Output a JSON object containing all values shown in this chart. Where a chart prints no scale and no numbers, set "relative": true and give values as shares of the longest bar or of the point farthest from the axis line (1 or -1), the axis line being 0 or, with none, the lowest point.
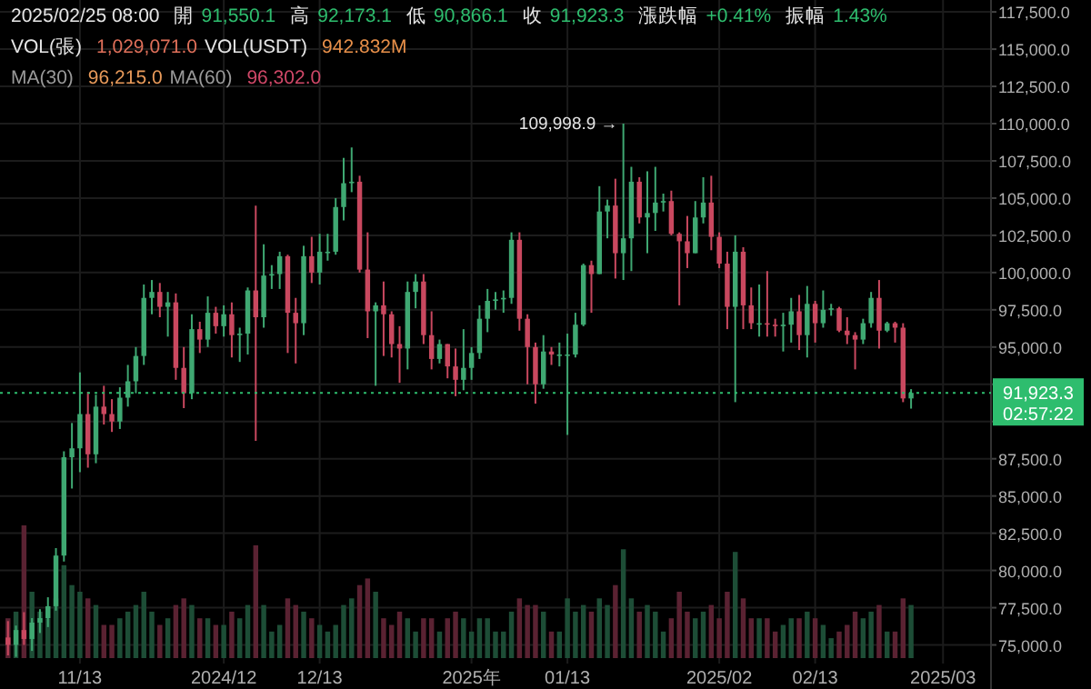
{
  "chart_data": [
    {
      "type": "candlestick",
      "grid": true,
      "xlim": [
        "2024-11-03",
        "2025-03-07"
      ],
      "ylim": [
        73750,
        118300
      ],
      "xticks": [
        {
          "value": "2024-11-13",
          "label": "11/13"
        },
        {
          "value": "2024-12-01",
          "label": "2024/12"
        },
        {
          "value": "2024-12-13",
          "label": "12/13"
        },
        {
          "value": "2025-01-01",
          "label": "2025年"
        },
        {
          "value": "2025-01-13",
          "label": "01/13"
        },
        {
          "value": "2025-02-01",
          "label": "2025/02"
        },
        {
          "value": "2025-02-13",
          "label": "02/13"
        },
        {
          "value": "2025-03-01",
          "label": "2025/03"
        }
      ],
      "yticks": [
        {
          "value": 75000,
          "label": "75,000.0"
        },
        {
          "value": 77500,
          "label": "77,500.0"
        },
        {
          "value": 80000,
          "label": "80,000.0"
        },
        {
          "value": 82500,
          "label": "82,500.0"
        },
        {
          "value": 85000,
          "label": "85,000.0"
        },
        {
          "value": 87500,
          "label": "87,500.0"
        },
        {
          "value": 90000,
          "label": null
        },
        {
          "value": 92500,
          "label": null
        },
        {
          "value": 95000,
          "label": "95,000.0"
        },
        {
          "value": 97500,
          "label": "97,500.0"
        },
        {
          "value": 100000,
          "label": "100,000.0"
        },
        {
          "value": 102500,
          "label": "102,500.0"
        },
        {
          "value": 105000,
          "label": "105,000.0"
        },
        {
          "value": 107500,
          "label": "107,500.0"
        },
        {
          "value": 110000,
          "label": "110,000.0"
        },
        {
          "value": 112500,
          "label": "112,500.0"
        },
        {
          "value": 115000,
          "label": "115,000.0"
        },
        {
          "value": 117500,
          "label": "117,500.0"
        }
      ],
      "ref_lines": [
        {
          "axis": "y",
          "value": 91923.3,
          "label": "91,923.3",
          "color": "#2ebd6e",
          "line_style": "dotted"
        }
      ],
      "annotations": [
        "2025/02/25 08:00",
        "開",
        "91,550.1",
        "高",
        "92,173.1",
        "低",
        "90,866.1",
        "收",
        "91,923.3",
        "漲跌幅",
        "+0.41%",
        "振幅",
        "1.43%",
        "VOL(張)",
        "1,029,071.0",
        "VOL(USDT)",
        "942.832M",
        "MA(30)",
        "96,215.0",
        "MA(60)",
        "96,302.0",
        "02:57:22",
        {
          "text": "109,998.9 →",
          "x": "2025-01-20",
          "y": 109998.9
        }
      ],
      "x": [
        "2024-11-04",
        "2024-11-05",
        "2024-11-06",
        "2024-11-07",
        "2024-11-08",
        "2024-11-09",
        "2024-11-10",
        "2024-11-11",
        "2024-11-12",
        "2024-11-13",
        "2024-11-14",
        "2024-11-15",
        "2024-11-16",
        "2024-11-17",
        "2024-11-18",
        "2024-11-19",
        "2024-11-20",
        "2024-11-21",
        "2024-11-22",
        "2024-11-23",
        "2024-11-24",
        "2024-11-25",
        "2024-11-26",
        "2024-11-27",
        "2024-11-28",
        "2024-11-29",
        "2024-11-30",
        "2024-12-01",
        "2024-12-02",
        "2024-12-03",
        "2024-12-04",
        "2024-12-05",
        "2024-12-06",
        "2024-12-07",
        "2024-12-08",
        "2024-12-09",
        "2024-12-10",
        "2024-12-11",
        "2024-12-12",
        "2024-12-13",
        "2024-12-14",
        "2024-12-15",
        "2024-12-16",
        "2024-12-17",
        "2024-12-18",
        "2024-12-19",
        "2024-12-20",
        "2024-12-21",
        "2024-12-22",
        "2024-12-23",
        "2024-12-24",
        "2024-12-25",
        "2024-12-26",
        "2024-12-27",
        "2024-12-28",
        "2024-12-29",
        "2024-12-30",
        "2024-12-31",
        "2025-01-01",
        "2025-01-02",
        "2025-01-03",
        "2025-01-04",
        "2025-01-05",
        "2025-01-06",
        "2025-01-07",
        "2025-01-08",
        "2025-01-09",
        "2025-01-10",
        "2025-01-11",
        "2025-01-12",
        "2025-01-13",
        "2025-01-14",
        "2025-01-15",
        "2025-01-16",
        "2025-01-17",
        "2025-01-18",
        "2025-01-19",
        "2025-01-20",
        "2025-01-21",
        "2025-01-22",
        "2025-01-23",
        "2025-01-24",
        "2025-01-25",
        "2025-01-26",
        "2025-01-27",
        "2025-01-28",
        "2025-01-29",
        "2025-01-30",
        "2025-01-31",
        "2025-02-01",
        "2025-02-02",
        "2025-02-03",
        "2025-02-04",
        "2025-02-05",
        "2025-02-06",
        "2025-02-07",
        "2025-02-08",
        "2025-02-09",
        "2025-02-10",
        "2025-02-11",
        "2025-02-12",
        "2025-02-13",
        "2025-02-14",
        "2025-02-15",
        "2025-02-16",
        "2025-02-17",
        "2025-02-18",
        "2025-02-19",
        "2025-02-20",
        "2025-02-21",
        "2025-02-22",
        "2025-02-23",
        "2025-02-24",
        "2025-02-25"
      ],
      "ohlc": [
        [
          75500,
          76600,
          74300,
          75000
        ],
        [
          75000,
          76300,
          74200,
          76000
        ],
        [
          76000,
          77200,
          75000,
          75400
        ],
        [
          75400,
          76800,
          74600,
          76500
        ],
        [
          76500,
          77400,
          75800,
          76800
        ],
        [
          76800,
          78200,
          76200,
          77600
        ],
        [
          77600,
          81500,
          77300,
          81000
        ],
        [
          81000,
          88000,
          80600,
          87600
        ],
        [
          87600,
          89900,
          85500,
          88200
        ],
        [
          88200,
          93300,
          86600,
          90500
        ],
        [
          90500,
          92000,
          86900,
          87800
        ],
        [
          87800,
          91800,
          87200,
          91000
        ],
        [
          91000,
          92400,
          89800,
          90500
        ],
        [
          90500,
          91500,
          89300,
          90000
        ],
        [
          90000,
          92300,
          89500,
          91600
        ],
        [
          91600,
          93800,
          91000,
          92700
        ],
        [
          92700,
          95000,
          91900,
          94400
        ],
        [
          94400,
          99200,
          93800,
          98300
        ],
        [
          98300,
          99500,
          97200,
          98700
        ],
        [
          98700,
          99300,
          97000,
          97700
        ],
        [
          97700,
          98700,
          95700,
          98000
        ],
        [
          98000,
          98600,
          92800,
          93600
        ],
        [
          93600,
          95000,
          90900,
          91900
        ],
        [
          91900,
          97200,
          91500,
          96200
        ],
        [
          96200,
          96700,
          94600,
          95500
        ],
        [
          95500,
          98400,
          95000,
          97300
        ],
        [
          97300,
          97700,
          95900,
          96400
        ],
        [
          96400,
          97800,
          95700,
          97200
        ],
        [
          97200,
          98000,
          94300,
          95800
        ],
        [
          95800,
          96300,
          94000,
          95900
        ],
        [
          95900,
          99000,
          94500,
          98800
        ],
        [
          98800,
          104500,
          88700,
          97000
        ],
        [
          97000,
          101900,
          96300,
          99800
        ],
        [
          99800,
          100500,
          98900,
          99900
        ],
        [
          99900,
          101400,
          98900,
          101100
        ],
        [
          101100,
          101200,
          94600,
          97300
        ],
        [
          97300,
          98300,
          93900,
          96600
        ],
        [
          96600,
          101800,
          95800,
          101100
        ],
        [
          101100,
          102400,
          99300,
          100000
        ],
        [
          100000,
          102600,
          99200,
          101400
        ],
        [
          101400,
          102600,
          100800,
          101400
        ],
        [
          101400,
          105000,
          101200,
          104400
        ],
        [
          104400,
          107700,
          103500,
          106000
        ],
        [
          106000,
          108400,
          105400,
          106100
        ],
        [
          106100,
          106500,
          100000,
          100200
        ],
        [
          100200,
          102700,
          95600,
          97400
        ],
        [
          97400,
          98000,
          92400,
          97800
        ],
        [
          97800,
          99400,
          94400,
          97200
        ],
        [
          97200,
          97400,
          94300,
          95200
        ],
        [
          95200,
          96400,
          92600,
          94900
        ],
        [
          94900,
          99400,
          93500,
          98700
        ],
        [
          98700,
          99900,
          97600,
          99400
        ],
        [
          99400,
          99900,
          95200,
          95800
        ],
        [
          95800,
          97400,
          93500,
          94200
        ],
        [
          94200,
          95500,
          93900,
          95200
        ],
        [
          95200,
          95200,
          92900,
          93700
        ],
        [
          93700,
          94900,
          91700,
          92800
        ],
        [
          92800,
          96200,
          92100,
          93600
        ],
        [
          93600,
          95000,
          92800,
          94600
        ],
        [
          94600,
          97800,
          94200,
          96900
        ],
        [
          96900,
          98900,
          96000,
          98100
        ],
        [
          98100,
          98700,
          97500,
          98200
        ],
        [
          98200,
          98800,
          97300,
          98300
        ],
        [
          98300,
          102700,
          97900,
          102200
        ],
        [
          102200,
          102700,
          96100,
          96900
        ],
        [
          96900,
          97200,
          92500,
          95000
        ],
        [
          95000,
          95300,
          91200,
          92500
        ],
        [
          92500,
          95800,
          92200,
          94700
        ],
        [
          94700,
          95000,
          93800,
          94500
        ],
        [
          94500,
          95300,
          93700,
          94500
        ],
        [
          94500,
          95900,
          89100,
          94500
        ],
        [
          94500,
          97300,
          94300,
          96500
        ],
        [
          96500,
          100600,
          96400,
          100500
        ],
        [
          100500,
          100800,
          97300,
          99900
        ],
        [
          99900,
          105800,
          99900,
          104100
        ],
        [
          104100,
          104900,
          102300,
          104500
        ],
        [
          104500,
          106300,
          99600,
          101300
        ],
        [
          101300,
          109998.9,
          99500,
          102300
        ],
        [
          102300,
          107100,
          100100,
          106100
        ],
        [
          106100,
          106400,
          103300,
          103700
        ],
        [
          103700,
          106800,
          101300,
          104000
        ],
        [
          104000,
          107100,
          102800,
          104700
        ],
        [
          104700,
          105300,
          104100,
          104800
        ],
        [
          104800,
          105500,
          102500,
          102600
        ],
        [
          102600,
          102700,
          97800,
          102100
        ],
        [
          102100,
          103800,
          100300,
          101300
        ],
        [
          101300,
          104800,
          101300,
          103700
        ],
        [
          103700,
          106400,
          103300,
          104700
        ],
        [
          104700,
          106500,
          101500,
          102400
        ],
        [
          102400,
          102700,
          100300,
          100600
        ],
        [
          100600,
          101400,
          96200,
          97700
        ],
        [
          97700,
          102500,
          91300,
          101400
        ],
        [
          101400,
          101700,
          96200,
          97800
        ],
        [
          97800,
          99000,
          96200,
          96600
        ],
        [
          96600,
          99200,
          95700,
          96600
        ],
        [
          96600,
          100100,
          95700,
          96500
        ],
        [
          96500,
          96900,
          95700,
          96400
        ],
        [
          96400,
          97300,
          94700,
          96500
        ],
        [
          96500,
          98300,
          95300,
          97400
        ],
        [
          97400,
          98500,
          94800,
          95800
        ],
        [
          95800,
          99100,
          94300,
          97900
        ],
        [
          97900,
          98100,
          95300,
          96600
        ],
        [
          96600,
          98800,
          96300,
          97500
        ],
        [
          97500,
          97900,
          97100,
          97600
        ],
        [
          97600,
          97700,
          96000,
          96100
        ],
        [
          96100,
          97000,
          95200,
          95800
        ],
        [
          95800,
          96000,
          93500,
          95500
        ],
        [
          95500,
          96900,
          95200,
          96600
        ],
        [
          96600,
          98700,
          96300,
          98300
        ],
        [
          98300,
          99500,
          94900,
          96100
        ],
        [
          96100,
          96700,
          96000,
          96600
        ],
        [
          96600,
          96700,
          95300,
          96300
        ],
        [
          96300,
          96600,
          91300,
          91550.1
        ],
        [
          91550.1,
          92173.1,
          90866.1,
          91923.3
        ]
      ],
      "colors": [
        "#c9485f",
        "#3fa872",
        "#c9485f",
        "#3fa872",
        "#3fa872",
        "#3fa872",
        "#3fa872",
        "#3fa872",
        "#3fa872",
        "#3fa872",
        "#c9485f",
        "#3fa872",
        "#c9485f",
        "#c9485f",
        "#3fa872",
        "#3fa872",
        "#3fa872",
        "#3fa872",
        "#3fa872",
        "#c9485f",
        "#3fa872",
        "#c9485f",
        "#c9485f",
        "#3fa872",
        "#c9485f",
        "#3fa872",
        "#c9485f",
        "#3fa872",
        "#c9485f",
        "#3fa872",
        "#3fa872",
        "#c9485f",
        "#3fa872",
        "#3fa872",
        "#3fa872",
        "#c9485f",
        "#c9485f",
        "#3fa872",
        "#c9485f",
        "#3fa872",
        "#3fa872",
        "#3fa872",
        "#3fa872",
        "#3fa872",
        "#c9485f",
        "#c9485f",
        "#3fa872",
        "#c9485f",
        "#c9485f",
        "#c9485f",
        "#3fa872",
        "#3fa872",
        "#c9485f",
        "#c9485f",
        "#3fa872",
        "#c9485f",
        "#c9485f",
        "#3fa872",
        "#3fa872",
        "#3fa872",
        "#3fa872",
        "#3fa872",
        "#3fa872",
        "#3fa872",
        "#c9485f",
        "#c9485f",
        "#c9485f",
        "#3fa872",
        "#c9485f",
        "#3fa872",
        "#3fa872",
        "#3fa872",
        "#3fa872",
        "#c9485f",
        "#3fa872",
        "#3fa872",
        "#c9485f",
        "#3fa872",
        "#3fa872",
        "#c9485f",
        "#3fa872",
        "#3fa872",
        "#3fa872",
        "#c9485f",
        "#c9485f",
        "#c9485f",
        "#3fa872",
        "#3fa872",
        "#c9485f",
        "#c9485f",
        "#c9485f",
        "#3fa872",
        "#c9485f",
        "#c9485f",
        "#3fa872",
        "#c9485f",
        "#c9485f",
        "#3fa872",
        "#3fa872",
        "#c9485f",
        "#3fa872",
        "#c9485f",
        "#3fa872",
        "#3fa872",
        "#c9485f",
        "#c9485f",
        "#c9485f",
        "#3fa872",
        "#3fa872",
        "#c9485f",
        "#3fa872",
        "#c9485f",
        "#c9485f",
        "#3fa872"
      ]
    },
    {
      "type": "bar",
      "relative": true,
      "xlim": [
        "2024-11-03",
        "2025-03-07"
      ],
      "x": [
        "2024-11-04",
        "2024-11-05",
        "2024-11-06",
        "2024-11-07",
        "2024-11-08",
        "2024-11-09",
        "2024-11-10",
        "2024-11-11",
        "2024-11-12",
        "2024-11-13",
        "2024-11-14",
        "2024-11-15",
        "2024-11-16",
        "2024-11-17",
        "2024-11-18",
        "2024-11-19",
        "2024-11-20",
        "2024-11-21",
        "2024-11-22",
        "2024-11-23",
        "2024-11-24",
        "2024-11-25",
        "2024-11-26",
        "2024-11-27",
        "2024-11-28",
        "2024-11-29",
        "2024-11-30",
        "2024-12-01",
        "2024-12-02",
        "2024-12-03",
        "2024-12-04",
        "2024-12-05",
        "2024-12-06",
        "2024-12-07",
        "2024-12-08",
        "2024-12-09",
        "2024-12-10",
        "2024-12-11",
        "2024-12-12",
        "2024-12-13",
        "2024-12-14",
        "2024-12-15",
        "2024-12-16",
        "2024-12-17",
        "2024-12-18",
        "2024-12-19",
        "2024-12-20",
        "2024-12-21",
        "2024-12-22",
        "2024-12-23",
        "2024-12-24",
        "2024-12-25",
        "2024-12-26",
        "2024-12-27",
        "2024-12-28",
        "2024-12-29",
        "2024-12-30",
        "2024-12-31",
        "2025-01-01",
        "2025-01-02",
        "2025-01-03",
        "2025-01-04",
        "2025-01-05",
        "2025-01-06",
        "2025-01-07",
        "2025-01-08",
        "2025-01-09",
        "2025-01-10",
        "2025-01-11",
        "2025-01-12",
        "2025-01-13",
        "2025-01-14",
        "2025-01-15",
        "2025-01-16",
        "2025-01-17",
        "2025-01-18",
        "2025-01-19",
        "2025-01-20",
        "2025-01-21",
        "2025-01-22",
        "2025-01-23",
        "2025-01-24",
        "2025-01-25",
        "2025-01-26",
        "2025-01-27",
        "2025-01-28",
        "2025-01-29",
        "2025-01-30",
        "2025-01-31",
        "2025-02-01",
        "2025-02-02",
        "2025-02-03",
        "2025-02-04",
        "2025-02-05",
        "2025-02-06",
        "2025-02-07",
        "2025-02-08",
        "2025-02-09",
        "2025-02-10",
        "2025-02-11",
        "2025-02-12",
        "2025-02-13",
        "2025-02-14",
        "2025-02-15",
        "2025-02-16",
        "2025-02-17",
        "2025-02-18",
        "2025-02-19",
        "2025-02-20",
        "2025-02-21",
        "2025-02-22",
        "2025-02-23",
        "2025-02-24",
        "2025-02-25"
      ],
      "values": [
        0.3,
        0.35,
        1,
        0.5,
        0.35,
        0.3,
        0.45,
        0.7,
        0.55,
        0.5,
        0.45,
        0.4,
        0.25,
        0.25,
        0.3,
        0.35,
        0.4,
        0.5,
        0.35,
        0.25,
        0.3,
        0.4,
        0.45,
        0.4,
        0.3,
        0.3,
        0.25,
        0.25,
        0.35,
        0.3,
        0.4,
        0.85,
        0.4,
        0.2,
        0.25,
        0.45,
        0.4,
        0.35,
        0.3,
        0.25,
        0.2,
        0.25,
        0.4,
        0.45,
        0.55,
        0.6,
        0.5,
        0.3,
        0.25,
        0.35,
        0.3,
        0.2,
        0.3,
        0.3,
        0.2,
        0.3,
        0.35,
        0.3,
        0.2,
        0.3,
        0.3,
        0.2,
        0.2,
        0.35,
        0.45,
        0.4,
        0.4,
        0.35,
        0.2,
        0.2,
        0.45,
        0.35,
        0.4,
        0.35,
        0.45,
        0.4,
        0.55,
        0.82,
        0.45,
        0.35,
        0.4,
        0.35,
        0.2,
        0.3,
        0.5,
        0.35,
        0.3,
        0.35,
        0.4,
        0.3,
        0.5,
        0.8,
        0.45,
        0.3,
        0.3,
        0.3,
        0.2,
        0.25,
        0.3,
        0.3,
        0.35,
        0.3,
        0.25,
        0.15,
        0.2,
        0.25,
        0.35,
        0.3,
        0.35,
        0.4,
        0.2,
        0.2,
        0.45,
        0.4
      ],
      "colors": [
        "#5a2232",
        "#1d4d36",
        "#5a2232",
        "#1d4d36",
        "#1d4d36",
        "#1d4d36",
        "#1d4d36",
        "#1d4d36",
        "#1d4d36",
        "#1d4d36",
        "#5a2232",
        "#1d4d36",
        "#5a2232",
        "#5a2232",
        "#1d4d36",
        "#1d4d36",
        "#1d4d36",
        "#1d4d36",
        "#1d4d36",
        "#5a2232",
        "#1d4d36",
        "#5a2232",
        "#5a2232",
        "#1d4d36",
        "#5a2232",
        "#1d4d36",
        "#5a2232",
        "#1d4d36",
        "#5a2232",
        "#1d4d36",
        "#1d4d36",
        "#5a2232",
        "#1d4d36",
        "#1d4d36",
        "#1d4d36",
        "#5a2232",
        "#5a2232",
        "#1d4d36",
        "#5a2232",
        "#1d4d36",
        "#1d4d36",
        "#1d4d36",
        "#1d4d36",
        "#1d4d36",
        "#5a2232",
        "#5a2232",
        "#1d4d36",
        "#5a2232",
        "#5a2232",
        "#5a2232",
        "#1d4d36",
        "#1d4d36",
        "#5a2232",
        "#5a2232",
        "#1d4d36",
        "#5a2232",
        "#5a2232",
        "#1d4d36",
        "#1d4d36",
        "#1d4d36",
        "#1d4d36",
        "#1d4d36",
        "#1d4d36",
        "#1d4d36",
        "#5a2232",
        "#5a2232",
        "#5a2232",
        "#1d4d36",
        "#5a2232",
        "#1d4d36",
        "#1d4d36",
        "#1d4d36",
        "#1d4d36",
        "#5a2232",
        "#1d4d36",
        "#1d4d36",
        "#5a2232",
        "#1d4d36",
        "#1d4d36",
        "#5a2232",
        "#1d4d36",
        "#1d4d36",
        "#1d4d36",
        "#5a2232",
        "#5a2232",
        "#5a2232",
        "#1d4d36",
        "#1d4d36",
        "#5a2232",
        "#5a2232",
        "#5a2232",
        "#1d4d36",
        "#5a2232",
        "#5a2232",
        "#1d4d36",
        "#5a2232",
        "#5a2232",
        "#1d4d36",
        "#1d4d36",
        "#5a2232",
        "#1d4d36",
        "#5a2232",
        "#1d4d36",
        "#1d4d36",
        "#5a2232",
        "#5a2232",
        "#5a2232",
        "#1d4d36",
        "#1d4d36",
        "#5a2232",
        "#1d4d36",
        "#5a2232",
        "#5a2232",
        "#1d4d36"
      ]
    }
  ]
}
